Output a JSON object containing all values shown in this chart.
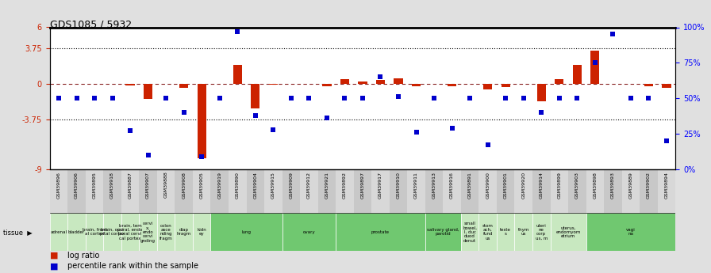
{
  "title": "GDS1085 / 5932",
  "samples": [
    "GSM39896",
    "GSM39906",
    "GSM39895",
    "GSM39918",
    "GSM39887",
    "GSM39907",
    "GSM39888",
    "GSM39908",
    "GSM39905",
    "GSM39919",
    "GSM39890",
    "GSM39904",
    "GSM39915",
    "GSM39909",
    "GSM39912",
    "GSM39921",
    "GSM39892",
    "GSM39897",
    "GSM39917",
    "GSM39910",
    "GSM39911",
    "GSM39913",
    "GSM39916",
    "GSM39891",
    "GSM39900",
    "GSM39901",
    "GSM39920",
    "GSM39914",
    "GSM39899",
    "GSM39903",
    "GSM39898",
    "GSM39893",
    "GSM39889",
    "GSM39902",
    "GSM39894"
  ],
  "log_ratio": [
    0.0,
    0.0,
    0.0,
    0.0,
    -0.15,
    -1.6,
    0.0,
    -0.4,
    -7.8,
    0.0,
    2.0,
    -2.6,
    -0.05,
    0.0,
    0.0,
    -0.25,
    0.5,
    0.3,
    0.4,
    0.6,
    -0.2,
    0.0,
    -0.25,
    0.0,
    -0.55,
    -0.3,
    0.0,
    -1.8,
    0.5,
    2.0,
    3.5,
    0.0,
    0.0,
    -0.2,
    -0.4
  ],
  "percentile_rank": [
    50,
    50,
    50,
    50,
    27,
    10,
    50,
    40,
    9,
    50,
    97,
    38,
    28,
    50,
    50,
    36,
    50,
    50,
    65,
    51,
    26,
    50,
    29,
    50,
    17,
    50,
    50,
    40,
    50,
    50,
    75,
    95,
    50,
    50,
    20
  ],
  "tissue_groups": [
    {
      "label": "adrenal",
      "start": 0,
      "end": 1,
      "color": "#c8e8c0"
    },
    {
      "label": "bladder",
      "start": 1,
      "end": 2,
      "color": "#c8e8c0"
    },
    {
      "label": "brain, front\nal cortex",
      "start": 2,
      "end": 3,
      "color": "#c8e8c0"
    },
    {
      "label": "brain, occi\npital cortex",
      "start": 3,
      "end": 4,
      "color": "#c8e8c0"
    },
    {
      "label": "brain, tem\nporal, endo\nporal cervi\ncal portex",
      "start": 4,
      "end": 5,
      "color": "#c8e8c0"
    },
    {
      "label": "cervi\nx,\nendo\ncervi\ngnding",
      "start": 5,
      "end": 6,
      "color": "#c8e8c0"
    },
    {
      "label": "colon\nasce\nnding\nfragm",
      "start": 6,
      "end": 7,
      "color": "#c8e8c0"
    },
    {
      "label": "diap\nhragm",
      "start": 7,
      "end": 8,
      "color": "#c8e8c0"
    },
    {
      "label": "kidn\ney",
      "start": 8,
      "end": 9,
      "color": "#c8e8c0"
    },
    {
      "label": "lung",
      "start": 9,
      "end": 13,
      "color": "#70c870"
    },
    {
      "label": "ovary",
      "start": 13,
      "end": 16,
      "color": "#70c870"
    },
    {
      "label": "prostate",
      "start": 16,
      "end": 21,
      "color": "#70c870"
    },
    {
      "label": "salivary gland,\nparotid",
      "start": 21,
      "end": 23,
      "color": "#70c870"
    },
    {
      "label": "small\nbowel,\nl, duc\nduod\ndenut",
      "start": 23,
      "end": 24,
      "color": "#c8e8c0"
    },
    {
      "label": "stom\nach,\nfund\nus",
      "start": 24,
      "end": 25,
      "color": "#c8e8c0"
    },
    {
      "label": "teste\ns",
      "start": 25,
      "end": 26,
      "color": "#c8e8c0"
    },
    {
      "label": "thym\nus",
      "start": 26,
      "end": 27,
      "color": "#c8e8c0"
    },
    {
      "label": "uteri\nne\ncorp\nus, m",
      "start": 27,
      "end": 28,
      "color": "#c8e8c0"
    },
    {
      "label": "uterus,\nendomyom\netrium",
      "start": 28,
      "end": 30,
      "color": "#c8e8c0"
    },
    {
      "label": "vagi\nna",
      "start": 30,
      "end": 35,
      "color": "#70c870"
    }
  ],
  "ylim_left": [
    -9,
    6
  ],
  "ylim_right": [
    0,
    100
  ],
  "yticks_left": [
    -9,
    -3.75,
    0,
    3.75,
    6
  ],
  "yticks_right": [
    0,
    25,
    50,
    75,
    100
  ],
  "ytick_labels_left": [
    "-9",
    "-3.75",
    "0",
    "3.75",
    "6"
  ],
  "ytick_labels_right": [
    "0%",
    "25%",
    "50%",
    "75%",
    "100%"
  ],
  "hlines": [
    -3.75,
    3.75
  ],
  "bar_color": "#cc2200",
  "dot_color": "#0000cc",
  "fig_bg": "#e0e0e0",
  "plot_bg": "#ffffff",
  "tick_bg_even": "#d8d8d8",
  "tick_bg_odd": "#c8c8c8"
}
